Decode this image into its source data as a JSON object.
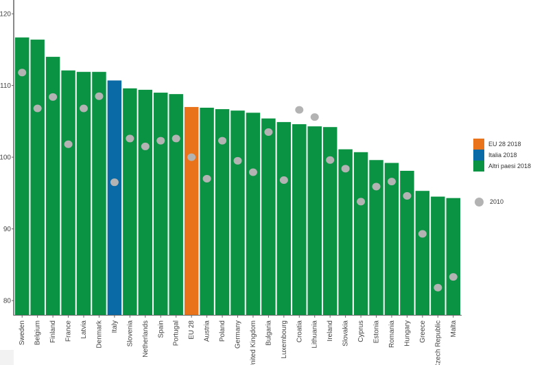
{
  "chart_data": {
    "type": "bar",
    "categories": [
      "Sweden",
      "Belgium",
      "Finland",
      "France",
      "Latvia",
      "Denmark",
      "Italy",
      "Slovenia",
      "Netherlands",
      "Spain",
      "Portugal",
      "EU 28",
      "Austria",
      "Poland",
      "Germany",
      "United Kingdom",
      "Bulgaria",
      "Luxembourg",
      "Croatia",
      "Lithuania",
      "Ireland",
      "Slovakia",
      "Cyprus",
      "Estonia",
      "Romania",
      "Hungary",
      "Greece",
      "Czech Republic",
      "Malta"
    ],
    "series": [
      {
        "name": "2018",
        "type": "bar",
        "values": [
          116.7,
          116.4,
          114.0,
          112.1,
          111.9,
          111.9,
          110.7,
          109.6,
          109.4,
          109.0,
          108.8,
          107.0,
          106.9,
          106.7,
          106.5,
          106.2,
          105.4,
          104.9,
          104.6,
          104.3,
          104.2,
          101.1,
          100.7,
          99.6,
          99.2,
          98.1,
          95.3,
          94.5,
          94.3
        ]
      },
      {
        "name": "2010",
        "type": "scatter",
        "values": [
          111.8,
          106.8,
          108.4,
          101.8,
          106.8,
          108.5,
          96.5,
          102.6,
          101.5,
          102.3,
          102.6,
          100.0,
          97.0,
          102.3,
          99.5,
          97.9,
          103.5,
          96.8,
          106.6,
          105.6,
          99.6,
          98.4,
          93.8,
          95.9,
          96.6,
          94.6,
          89.3,
          81.8,
          83.3
        ]
      }
    ],
    "highlight": {
      "Italy": "Italia 2018",
      "EU 28": "EU 28 2018"
    },
    "yticks": [
      80,
      90,
      100,
      110,
      120
    ],
    "ylim": [
      78,
      122
    ],
    "grid": false,
    "legend_position": "right",
    "legend": [
      {
        "label": "EU 28 2018",
        "color": "#e8731a",
        "shape": "square"
      },
      {
        "label": "Italia 2018",
        "color": "#0a6aa6",
        "shape": "square"
      },
      {
        "label": "Altri paesi 2018",
        "color": "#0a9343",
        "shape": "square"
      },
      {
        "label": "2010",
        "color": "#b3b3b3",
        "shape": "circle"
      }
    ],
    "colors": {
      "eu": "#e8731a",
      "italy": "#0a6aa6",
      "other": "#0a9343",
      "dot": "#b3b3b3"
    }
  }
}
